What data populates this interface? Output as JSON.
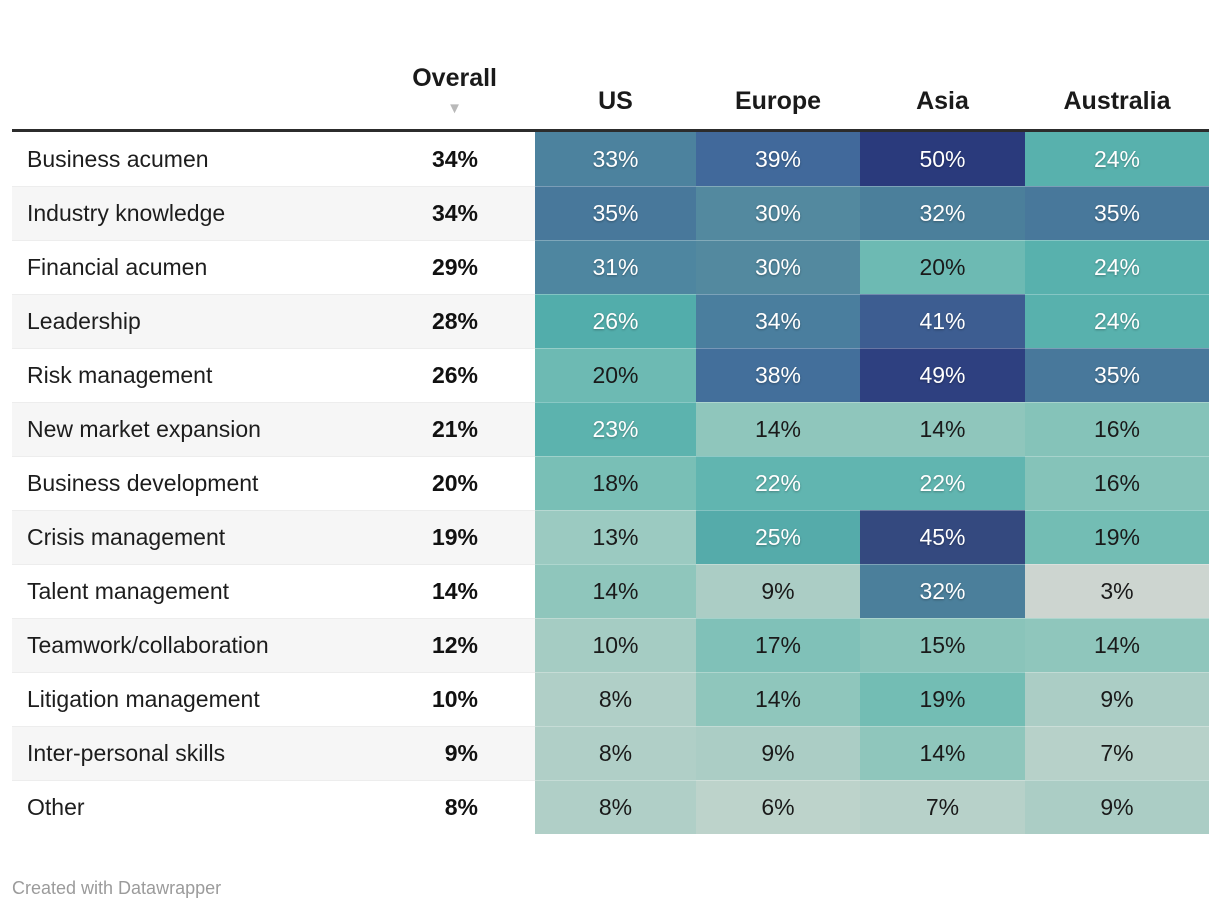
{
  "header": {
    "category_header": "",
    "overall_label": "Overall",
    "sort_icon_glyph": "▼",
    "regions": [
      "US",
      "Europe",
      "Asia",
      "Australia"
    ]
  },
  "footer": {
    "attribution": "Created with Datawrapper"
  },
  "colors": {
    "header_rule": "#2c2c2c",
    "row_stripe": "#f6f6f6",
    "label_text": "#1d1d1d",
    "footer_text": "#9b9b9b",
    "sort_arrow": "#b9b9b9",
    "scale_min": "#cdd5d0",
    "scale_mid_teal": "#58b1ad",
    "scale_max": "#2a3a7c"
  },
  "rows": [
    {
      "label": "Business acumen",
      "overall": "34%",
      "cells": [
        {
          "v": "33%",
          "bg": "#4c829e",
          "fg": "#ffffff"
        },
        {
          "v": "39%",
          "bg": "#41699b",
          "fg": "#ffffff"
        },
        {
          "v": "50%",
          "bg": "#2a3a7c",
          "fg": "#ffffff"
        },
        {
          "v": "24%",
          "bg": "#58b1ad",
          "fg": "#ffffff"
        }
      ]
    },
    {
      "label": "Industry knowledge",
      "overall": "34%",
      "cells": [
        {
          "v": "35%",
          "bg": "#48789b",
          "fg": "#ffffff"
        },
        {
          "v": "30%",
          "bg": "#53899f",
          "fg": "#ffffff"
        },
        {
          "v": "32%",
          "bg": "#4b7f9b",
          "fg": "#ffffff"
        },
        {
          "v": "35%",
          "bg": "#48789b",
          "fg": "#ffffff"
        }
      ]
    },
    {
      "label": "Financial acumen",
      "overall": "29%",
      "cells": [
        {
          "v": "31%",
          "bg": "#4e86a0",
          "fg": "#ffffff"
        },
        {
          "v": "30%",
          "bg": "#53899f",
          "fg": "#ffffff"
        },
        {
          "v": "20%",
          "bg": "#6dbab3",
          "fg": "#1a1a1a"
        },
        {
          "v": "24%",
          "bg": "#58b1ad",
          "fg": "#ffffff"
        }
      ]
    },
    {
      "label": "Leadership",
      "overall": "28%",
      "cells": [
        {
          "v": "26%",
          "bg": "#52adab",
          "fg": "#ffffff"
        },
        {
          "v": "34%",
          "bg": "#4a7e9e",
          "fg": "#ffffff"
        },
        {
          "v": "41%",
          "bg": "#3d5d91",
          "fg": "#ffffff"
        },
        {
          "v": "24%",
          "bg": "#58b1ad",
          "fg": "#ffffff"
        }
      ]
    },
    {
      "label": "Risk management",
      "overall": "26%",
      "cells": [
        {
          "v": "20%",
          "bg": "#6dbab3",
          "fg": "#1a1a1a"
        },
        {
          "v": "38%",
          "bg": "#436f9b",
          "fg": "#ffffff"
        },
        {
          "v": "49%",
          "bg": "#2e4080",
          "fg": "#ffffff"
        },
        {
          "v": "35%",
          "bg": "#48789b",
          "fg": "#ffffff"
        }
      ]
    },
    {
      "label": "New market expansion",
      "overall": "21%",
      "cells": [
        {
          "v": "23%",
          "bg": "#5cb3ae",
          "fg": "#ffffff"
        },
        {
          "v": "14%",
          "bg": "#8fc6bc",
          "fg": "#1a1a1a"
        },
        {
          "v": "14%",
          "bg": "#8fc6bc",
          "fg": "#1a1a1a"
        },
        {
          "v": "16%",
          "bg": "#85c3b9",
          "fg": "#1a1a1a"
        }
      ]
    },
    {
      "label": "Business development",
      "overall": "20%",
      "cells": [
        {
          "v": "18%",
          "bg": "#79bfb6",
          "fg": "#1a1a1a"
        },
        {
          "v": "22%",
          "bg": "#61b5b0",
          "fg": "#ffffff"
        },
        {
          "v": "22%",
          "bg": "#61b5b0",
          "fg": "#ffffff"
        },
        {
          "v": "16%",
          "bg": "#85c3b9",
          "fg": "#1a1a1a"
        }
      ]
    },
    {
      "label": "Crisis management",
      "overall": "19%",
      "cells": [
        {
          "v": "13%",
          "bg": "#9bcac1",
          "fg": "#1a1a1a"
        },
        {
          "v": "25%",
          "bg": "#55abaa",
          "fg": "#ffffff"
        },
        {
          "v": "45%",
          "bg": "#34497f",
          "fg": "#ffffff"
        },
        {
          "v": "19%",
          "bg": "#73bdb4",
          "fg": "#1a1a1a"
        }
      ]
    },
    {
      "label": "Talent management",
      "overall": "14%",
      "cells": [
        {
          "v": "14%",
          "bg": "#8fc6bc",
          "fg": "#1a1a1a"
        },
        {
          "v": "9%",
          "bg": "#abcdc5",
          "fg": "#1a1a1a"
        },
        {
          "v": "32%",
          "bg": "#4b7f9b",
          "fg": "#ffffff"
        },
        {
          "v": "3%",
          "bg": "#cdd5d0",
          "fg": "#1a1a1a"
        }
      ]
    },
    {
      "label": "Teamwork/collaboration",
      "overall": "12%",
      "cells": [
        {
          "v": "10%",
          "bg": "#a5ccc3",
          "fg": "#1a1a1a"
        },
        {
          "v": "17%",
          "bg": "#80c1b8",
          "fg": "#1a1a1a"
        },
        {
          "v": "15%",
          "bg": "#8ac4ba",
          "fg": "#1a1a1a"
        },
        {
          "v": "14%",
          "bg": "#8fc6bc",
          "fg": "#1a1a1a"
        }
      ]
    },
    {
      "label": "Litigation management",
      "overall": "10%",
      "cells": [
        {
          "v": "8%",
          "bg": "#b0cfc7",
          "fg": "#1a1a1a"
        },
        {
          "v": "14%",
          "bg": "#8fc6bc",
          "fg": "#1a1a1a"
        },
        {
          "v": "19%",
          "bg": "#73bdb4",
          "fg": "#1a1a1a"
        },
        {
          "v": "9%",
          "bg": "#abcdc5",
          "fg": "#1a1a1a"
        }
      ]
    },
    {
      "label": "Inter-personal skills",
      "overall": "9%",
      "cells": [
        {
          "v": "8%",
          "bg": "#b0cfc7",
          "fg": "#1a1a1a"
        },
        {
          "v": "9%",
          "bg": "#abcdc5",
          "fg": "#1a1a1a"
        },
        {
          "v": "14%",
          "bg": "#8fc6bc",
          "fg": "#1a1a1a"
        },
        {
          "v": "7%",
          "bg": "#b7d1c9",
          "fg": "#1a1a1a"
        }
      ]
    },
    {
      "label": "Other",
      "overall": "8%",
      "cells": [
        {
          "v": "8%",
          "bg": "#b0cfc7",
          "fg": "#1a1a1a"
        },
        {
          "v": "6%",
          "bg": "#bdd3cb",
          "fg": "#1a1a1a"
        },
        {
          "v": "7%",
          "bg": "#b7d1c9",
          "fg": "#1a1a1a"
        },
        {
          "v": "9%",
          "bg": "#abcdc5",
          "fg": "#1a1a1a"
        }
      ]
    }
  ],
  "chart_data": {
    "type": "heatmap",
    "title": "",
    "categories": [
      "Business acumen",
      "Industry knowledge",
      "Financial acumen",
      "Leadership",
      "Risk management",
      "New market expansion",
      "Business development",
      "Crisis management",
      "Talent management",
      "Teamwork/collaboration",
      "Litigation management",
      "Inter-personal skills",
      "Other"
    ],
    "series": [
      {
        "name": "Overall",
        "values": [
          34,
          34,
          29,
          28,
          26,
          21,
          20,
          19,
          14,
          12,
          10,
          9,
          8
        ]
      },
      {
        "name": "US",
        "values": [
          33,
          35,
          31,
          26,
          20,
          23,
          18,
          13,
          14,
          10,
          8,
          8,
          8
        ]
      },
      {
        "name": "Europe",
        "values": [
          39,
          30,
          30,
          34,
          38,
          14,
          22,
          25,
          9,
          17,
          14,
          9,
          6
        ]
      },
      {
        "name": "Asia",
        "values": [
          50,
          32,
          20,
          41,
          49,
          14,
          22,
          45,
          32,
          15,
          19,
          14,
          7
        ]
      },
      {
        "name": "Australia",
        "values": [
          24,
          35,
          24,
          24,
          35,
          16,
          16,
          19,
          3,
          14,
          9,
          7,
          9
        ]
      }
    ],
    "value_unit": "%",
    "value_range": [
      3,
      50
    ],
    "sort": {
      "column": "Overall",
      "direction": "descending"
    },
    "color_scale": {
      "low": "#cdd5d0",
      "mid": "#58b1ad",
      "high": "#2a3a7c"
    },
    "heatmap_columns": [
      "US",
      "Europe",
      "Asia",
      "Australia"
    ],
    "legend_position": "none",
    "grid": false,
    "attribution": "Created with Datawrapper"
  }
}
